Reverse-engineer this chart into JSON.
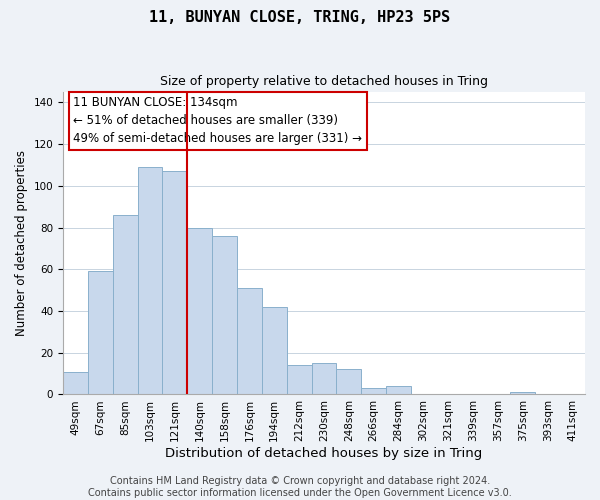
{
  "title": "11, BUNYAN CLOSE, TRING, HP23 5PS",
  "subtitle": "Size of property relative to detached houses in Tring",
  "xlabel": "Distribution of detached houses by size in Tring",
  "ylabel": "Number of detached properties",
  "bar_color": "#c8d8ec",
  "bar_edge_color": "#8ab0cc",
  "vline_color": "#cc0000",
  "vline_x": 5,
  "annotation_title": "11 BUNYAN CLOSE: 134sqm",
  "annotation_line1": "← 51% of detached houses are smaller (339)",
  "annotation_line2": "49% of semi-detached houses are larger (331) →",
  "categories": [
    "49sqm",
    "67sqm",
    "85sqm",
    "103sqm",
    "121sqm",
    "140sqm",
    "158sqm",
    "176sqm",
    "194sqm",
    "212sqm",
    "230sqm",
    "248sqm",
    "266sqm",
    "284sqm",
    "302sqm",
    "321sqm",
    "339sqm",
    "357sqm",
    "375sqm",
    "393sqm",
    "411sqm"
  ],
  "values": [
    11,
    59,
    86,
    109,
    107,
    80,
    76,
    51,
    42,
    14,
    15,
    12,
    3,
    4,
    0,
    0,
    0,
    0,
    1,
    0,
    0
  ],
  "ylim": [
    0,
    145
  ],
  "yticks": [
    0,
    20,
    40,
    60,
    80,
    100,
    120,
    140
  ],
  "footer_line1": "Contains HM Land Registry data © Crown copyright and database right 2024.",
  "footer_line2": "Contains public sector information licensed under the Open Government Licence v3.0.",
  "background_color": "#eef2f7",
  "plot_bg_color": "#ffffff",
  "title_fontsize": 11,
  "subtitle_fontsize": 9,
  "xlabel_fontsize": 9.5,
  "ylabel_fontsize": 8.5,
  "tick_fontsize": 7.5,
  "footer_fontsize": 7,
  "grid_color": "#c8d4e0",
  "ann_box_edgecolor": "#cc0000",
  "ann_box_facecolor": "#ffffff",
  "spine_color": "#aaaaaa"
}
